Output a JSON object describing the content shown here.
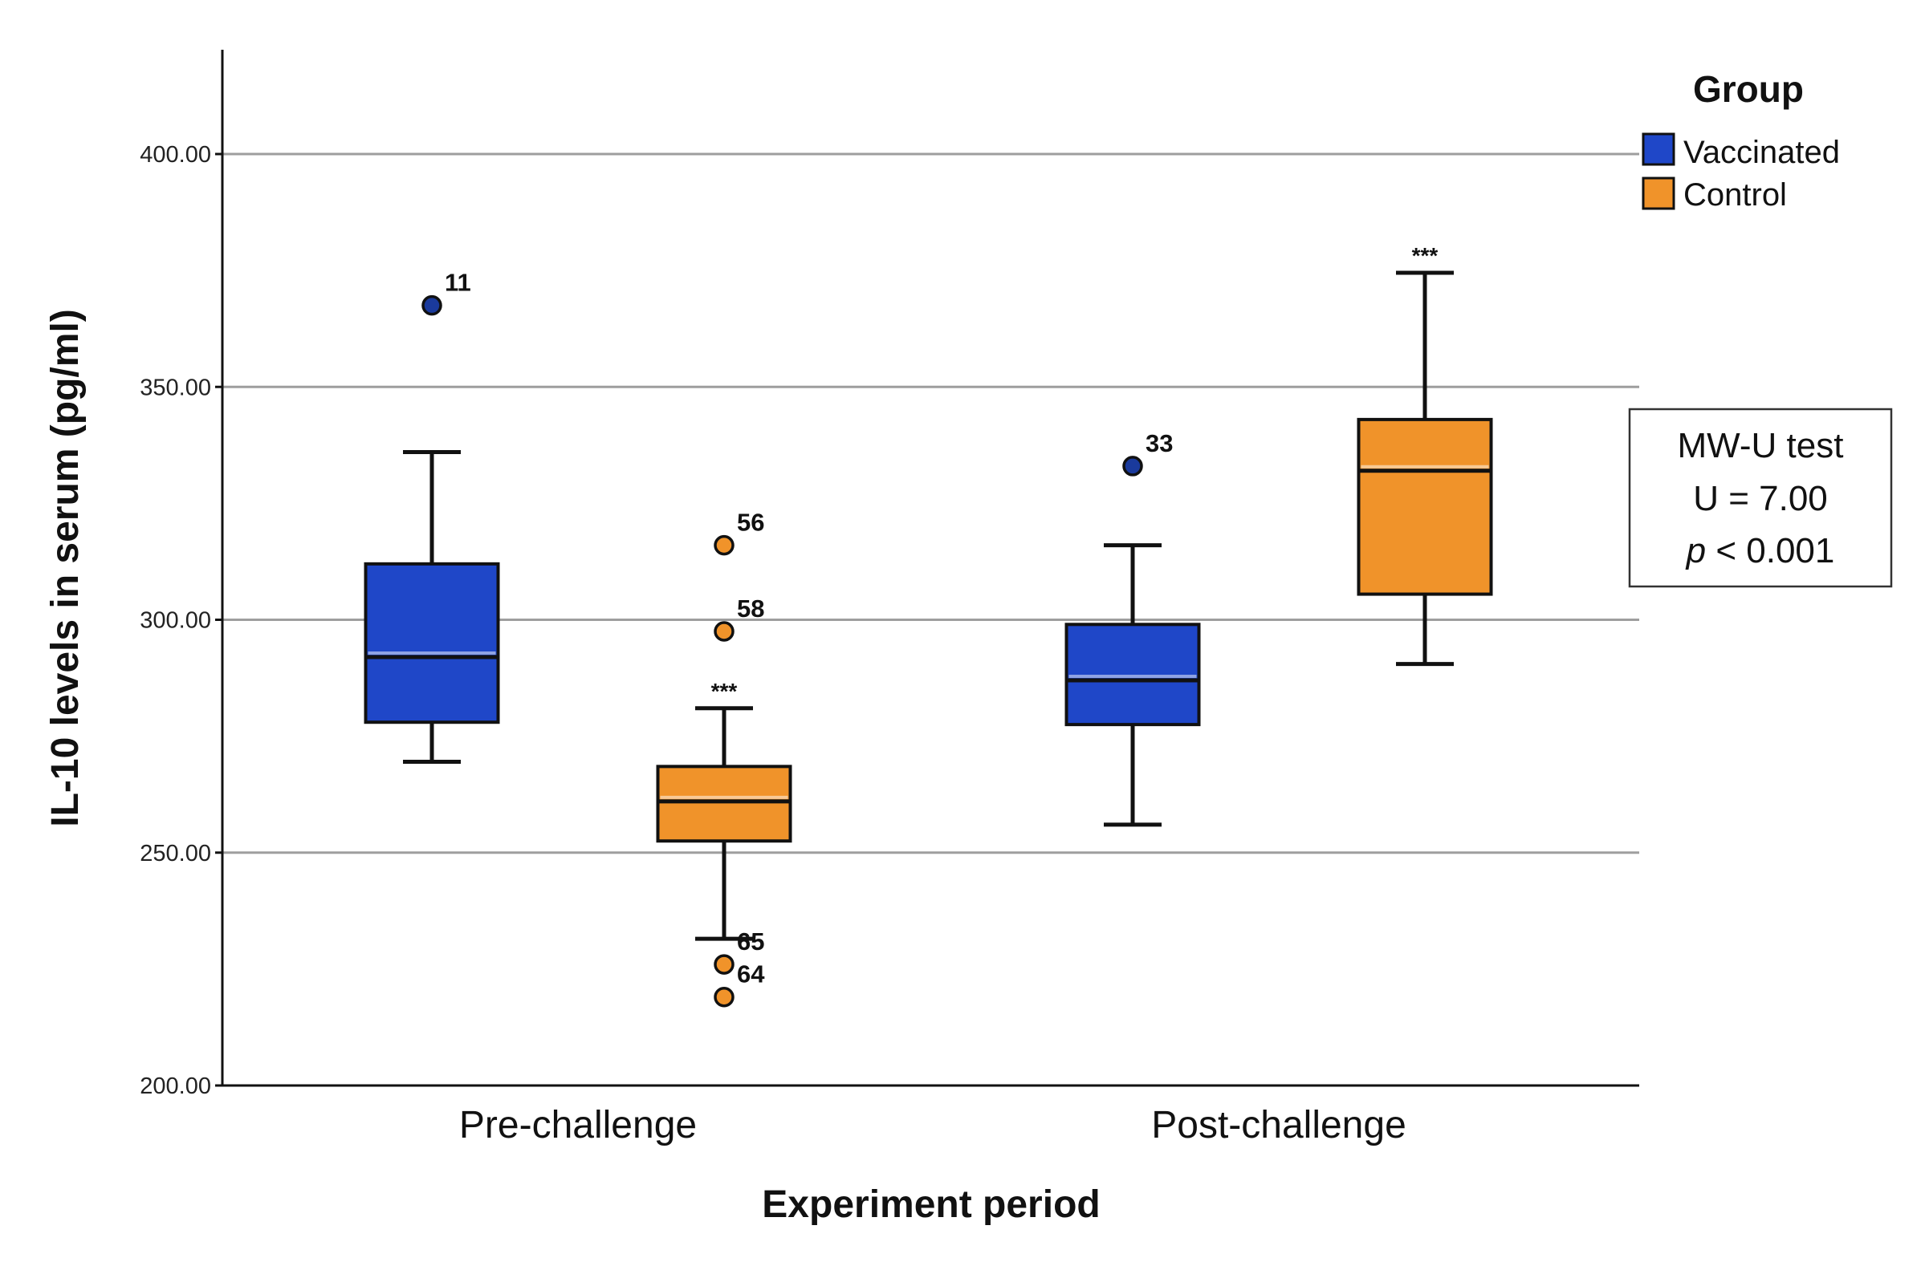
{
  "chart_data": {
    "type": "box",
    "xlabel": "Experiment period",
    "ylabel": "IL-10 levels in serum (pg/ml)",
    "ylim": [
      200,
      420
    ],
    "yticks": [
      "400.00",
      "350.00",
      "300.00",
      "250.00",
      "200.00"
    ],
    "ytick_values": [
      400,
      350,
      300,
      250,
      200
    ],
    "grid": "horizontal",
    "categories": [
      "Pre-challenge",
      "Post-challenge"
    ],
    "legend": {
      "title": "Group",
      "placement": "top-right",
      "entries": [
        "Vaccinated",
        "Control"
      ]
    },
    "series": [
      {
        "name": "Vaccinated",
        "color": "#1f47c8",
        "boxes": [
          {
            "min": 269.5,
            "q1": 278,
            "median": 292,
            "q3": 312,
            "max": 336,
            "outliers": [
              {
                "value": 367.5,
                "label": "11"
              }
            ],
            "sig": ""
          },
          {
            "min": 256,
            "q1": 277.5,
            "median": 287,
            "q3": 299,
            "max": 316,
            "outliers": [
              {
                "value": 333,
                "label": "33"
              }
            ],
            "sig": ""
          }
        ]
      },
      {
        "name": "Control",
        "color": "#f0932a",
        "boxes": [
          {
            "min": 231.5,
            "q1": 252.5,
            "median": 261,
            "q3": 268.5,
            "max": 281,
            "outliers": [
              {
                "value": 316,
                "label": "56"
              },
              {
                "value": 297.5,
                "label": "58"
              },
              {
                "value": 226,
                "label": "65"
              },
              {
                "value": 219,
                "label": "64"
              }
            ],
            "sig": "***"
          },
          {
            "min": 290.5,
            "q1": 305.5,
            "median": 332,
            "q3": 343,
            "max": 374.5,
            "outliers": [],
            "sig": "***"
          }
        ]
      }
    ],
    "annotation": {
      "line1": "MW-U test",
      "line2": "U = 7.00",
      "line3_italic": "p",
      "line3_rest": " < 0.001"
    }
  }
}
